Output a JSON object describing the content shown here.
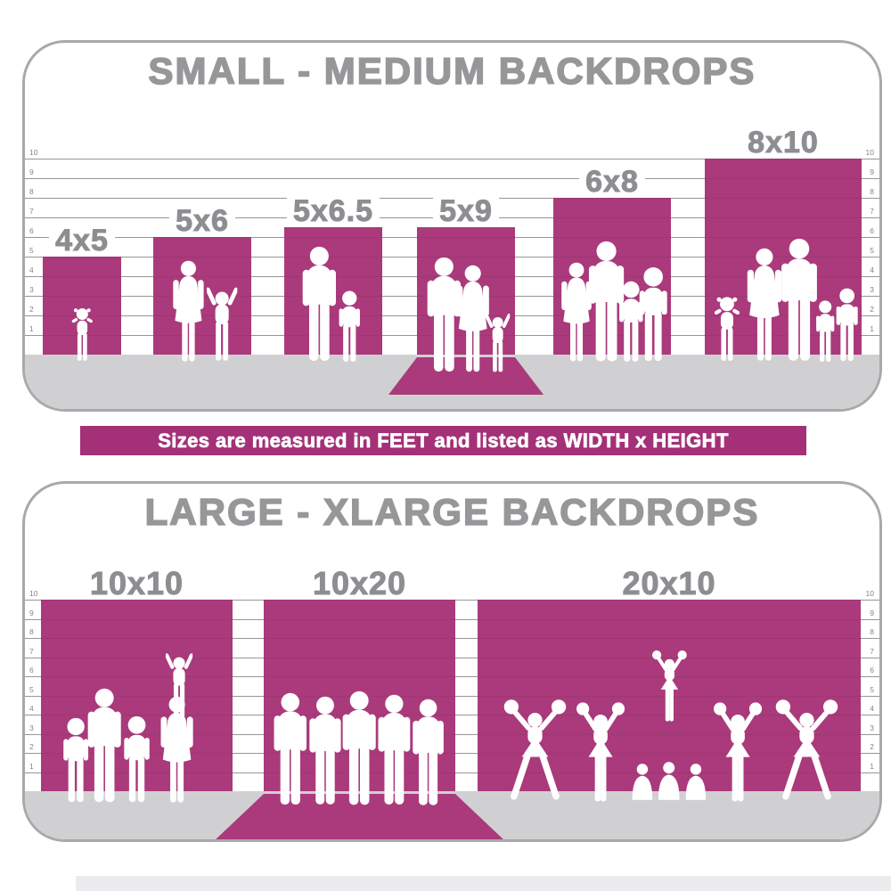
{
  "banner": {
    "text": "Sizes are measured in FEET and listed as WIDTH x HEIGHT"
  },
  "colors": {
    "backdrop_magenta": "#aa3a7b",
    "banner_magenta": "#a43077",
    "floor_gray": "#d0d0d2",
    "title_gray": "#97979a",
    "label_gray": "#8d8e91",
    "ruler_line_gray": "#a5a5a8",
    "ruler_number_gray": "#85858a",
    "panel_border_gray": "#a9a9ac",
    "background": "#ffffff",
    "silhouette_white": "#ffffff"
  },
  "chart_data": [
    {
      "type": "bar",
      "title": "SMALL - MEDIUM BACKDROPS",
      "unit": "feet",
      "ylabel": "feet",
      "ylim": [
        0,
        10
      ],
      "yticks": [
        1,
        2,
        3,
        4,
        5,
        6,
        7,
        8,
        9,
        10
      ],
      "categories": [
        "4x5",
        "5x6",
        "5x6.5",
        "5x9",
        "6x8",
        "8x10"
      ],
      "bars": [
        {
          "label": "4x5",
          "width_ft": 4,
          "height_ft": 5,
          "wall_ft": 5,
          "sweep": false,
          "figures": [
            {
              "icon": "toddler-girl-silhouette",
              "height_ft": 2.8,
              "x": 0.5
            }
          ]
        },
        {
          "label": "5x6",
          "width_ft": 5,
          "height_ft": 6,
          "wall_ft": 6,
          "sweep": false,
          "figures": [
            {
              "icon": "woman-silhouette",
              "height_ft": 5.2,
              "x": 0.36
            },
            {
              "icon": "child-arms-up-silhouette",
              "height_ft": 3.9,
              "x": 0.7
            }
          ]
        },
        {
          "label": "5x6.5",
          "width_ft": 5,
          "height_ft": 6.5,
          "wall_ft": 6.5,
          "sweep": false,
          "figures": [
            {
              "icon": "man-silhouette",
              "height_ft": 5.9,
              "x": 0.36
            },
            {
              "icon": "child-silhouette",
              "height_ft": 3.7,
              "x": 0.67
            }
          ]
        },
        {
          "label": "5x9",
          "width_ft": 5,
          "height_ft": 9,
          "wall_ft": 6.5,
          "sweep": true,
          "figures": [
            {
              "icon": "man-silhouette",
              "height_ft": 5.9,
              "x": 0.28
            },
            {
              "icon": "woman-silhouette",
              "height_ft": 5.5,
              "x": 0.57
            },
            {
              "icon": "child-arms-up-silhouette",
              "height_ft": 3.1,
              "x": 0.82
            }
          ]
        },
        {
          "label": "6x8",
          "width_ft": 6,
          "height_ft": 8,
          "wall_ft": 8,
          "sweep": false,
          "figures": [
            {
              "icon": "woman-silhouette",
              "height_ft": 5.1,
              "x": 0.2
            },
            {
              "icon": "man-silhouette",
              "height_ft": 6.2,
              "x": 0.45
            },
            {
              "icon": "child-silhouette",
              "height_ft": 4.2,
              "x": 0.66
            },
            {
              "icon": "child-silhouette",
              "height_ft": 4.9,
              "x": 0.85
            }
          ]
        },
        {
          "label": "8x10",
          "width_ft": 8,
          "height_ft": 10,
          "wall_ft": 10,
          "sweep": false,
          "figures": [
            {
              "icon": "toddler-girl-silhouette",
              "height_ft": 3.4,
              "x": 0.14
            },
            {
              "icon": "woman-silhouette",
              "height_ft": 5.8,
              "x": 0.38
            },
            {
              "icon": "man-silhouette",
              "height_ft": 6.3,
              "x": 0.6
            },
            {
              "icon": "child-silhouette",
              "height_ft": 3.2,
              "x": 0.77
            },
            {
              "icon": "child-silhouette",
              "height_ft": 3.8,
              "x": 0.91
            }
          ]
        }
      ]
    },
    {
      "type": "bar",
      "title": "LARGE - XLARGE BACKDROPS",
      "unit": "feet",
      "ylabel": "feet",
      "ylim": [
        0,
        10
      ],
      "yticks": [
        1,
        2,
        3,
        4,
        5,
        6,
        7,
        8,
        9,
        10
      ],
      "categories": [
        "10x10",
        "10x20",
        "20x10"
      ],
      "bars": [
        {
          "label": "10x10",
          "width_ft": 10,
          "height_ft": 10,
          "wall_ft": 10,
          "sweep": false,
          "figures": [
            {
              "icon": "child-silhouette",
              "height_ft": 4.5,
              "x": 0.18
            },
            {
              "icon": "man-silhouette",
              "height_ft": 6.0,
              "x": 0.33
            },
            {
              "icon": "child-silhouette",
              "height_ft": 4.6,
              "x": 0.5
            },
            {
              "icon": "child-arms-up-silhouette",
              "height_ft": 3.5,
              "x": 0.72,
              "lift_ft": 4.4
            },
            {
              "icon": "woman-silhouette",
              "height_ft": 5.6,
              "x": 0.71
            }
          ]
        },
        {
          "label": "10x20",
          "width_ft": 10,
          "height_ft": 20,
          "wall_ft": 10,
          "sweep": true,
          "figures": [
            {
              "icon": "man-silhouette",
              "height_ft": 5.9,
              "x": 0.14
            },
            {
              "icon": "man-silhouette",
              "height_ft": 5.7,
              "x": 0.32
            },
            {
              "icon": "man-silhouette",
              "height_ft": 6.0,
              "x": 0.5
            },
            {
              "icon": "man-silhouette",
              "height_ft": 5.8,
              "x": 0.68
            },
            {
              "icon": "man-silhouette",
              "height_ft": 5.6,
              "x": 0.86
            }
          ]
        },
        {
          "label": "20x10",
          "width_ft": 20,
          "height_ft": 10,
          "wall_ft": 10,
          "sweep": false,
          "figures": [
            {
              "icon": "cheerleader-lunge-silhouette",
              "height_ft": 5.5,
              "x": 0.15
            },
            {
              "icon": "cheerleader-silhouette",
              "height_ft": 5.3,
              "x": 0.32
            },
            {
              "icon": "kneeling-base-silhouette",
              "height_ft": 2.1,
              "x": 0.43
            },
            {
              "icon": "kneeling-base-silhouette",
              "height_ft": 2.2,
              "x": 0.5
            },
            {
              "icon": "kneeling-base-silhouette",
              "height_ft": 2.1,
              "x": 0.57
            },
            {
              "icon": "cheerleader-silhouette",
              "height_ft": 3.8,
              "x": 0.5,
              "lift_ft": 4.2
            },
            {
              "icon": "cheerleader-silhouette",
              "height_ft": 5.3,
              "x": 0.68,
              "flip": true
            },
            {
              "icon": "cheerleader-lunge-silhouette",
              "height_ft": 5.5,
              "x": 0.86,
              "flip": true
            }
          ]
        }
      ]
    }
  ]
}
